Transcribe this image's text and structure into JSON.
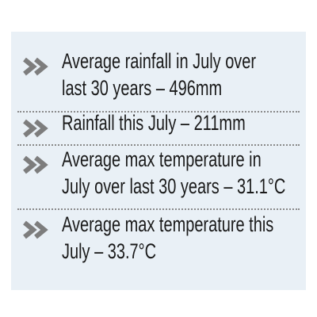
{
  "items": [
    {
      "lines": [
        "Average rainfall in July over",
        "last 30 years – 496mm"
      ]
    },
    {
      "lines": [
        "Rainfall this July – 211mm"
      ]
    },
    {
      "lines": [
        "Average max temperature in",
        "July over last 30 years – 31.1°C"
      ]
    },
    {
      "lines": [
        "Average max temperature this",
        "July – 33.7°C"
      ]
    }
  ]
}
